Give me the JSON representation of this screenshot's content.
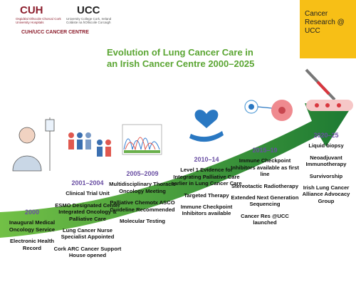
{
  "header": {
    "cuh_logo": "CUH",
    "cuh_subtitle": "Ospidéal Ollscoile Chorcaí Cork University Hospitals",
    "ucc_logo": "UCC",
    "ucc_subtitle": "University College Cork, Ireland Coláiste na hOllscoile Corcaigh",
    "centre": "CUH/UCC CANCER CENTRE",
    "badge": "Cancer Research @ UCC"
  },
  "title": "Evolution of Lung Cancer Care in an Irish Cancer Centre 2000–2025",
  "periods": [
    {
      "label": "2000",
      "items": [
        "Inaugural Medical Oncology Service",
        "Electronic Health Record"
      ]
    },
    {
      "label": "2001–2004",
      "items": [
        "Clinical Trial Unit",
        "ESMO Designated Center Integrated Oncology & Palliative Care",
        "Lung Cancer Nurse Specialist Appointed",
        "Cork ARC Cancer Support House opened"
      ]
    },
    {
      "label": "2005–2009",
      "items": [
        "Multidisciplinary Thoracic Oncology Meeting",
        "Palliative Chemotx ASCO Guideline Recommended",
        "Molecular Testing"
      ]
    },
    {
      "label": "2010–14",
      "items": [
        "Level 1 Evidence for Integrating Palliative Care earlier in Lung Cancer Care",
        "Targeted Therapy",
        "Immune Checkpoint Inhibitors available"
      ]
    },
    {
      "label": "2015–19",
      "items": [
        "Immune Checkpoint Inhibitors available as first line",
        "Stereotactic Radiotherapy",
        "Extended Next Generation Sequencing",
        "Cancer Res @UCC launched"
      ]
    },
    {
      "label": "2020–25",
      "items": [
        "Liquid biopsy",
        "Neoadjuvant Immunotherapy",
        "Survivorship",
        "Irish Lung Cancer Alliance Advocacy Group"
      ]
    }
  ]
}
